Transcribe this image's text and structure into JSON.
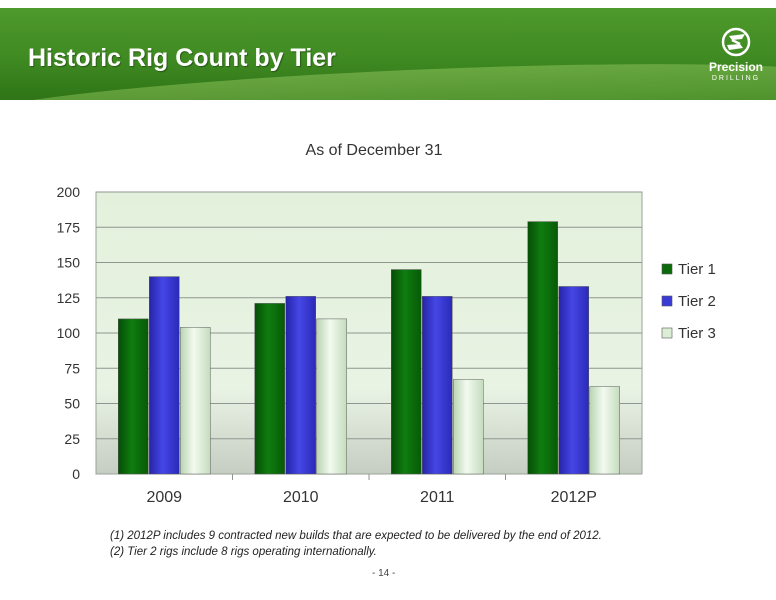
{
  "header": {
    "title": "Historic Rig Count by Tier",
    "logo_name": "Precision",
    "logo_sub": "DRILLING"
  },
  "chart_data": {
    "type": "bar",
    "title": "As of December 31",
    "categories": [
      "2009",
      "2010",
      "2011",
      "2012P"
    ],
    "series": [
      {
        "name": "Tier 1",
        "values": [
          110,
          121,
          145,
          179
        ],
        "color": "#0b6b0b"
      },
      {
        "name": "Tier 2",
        "values": [
          140,
          126,
          126,
          133
        ],
        "color": "#3a3ad6"
      },
      {
        "name": "Tier 3",
        "values": [
          104,
          110,
          67,
          62
        ],
        "color": "#dcefd6"
      }
    ],
    "y_ticks": [
      "0",
      "25",
      "50",
      "75",
      "100",
      "125",
      "150",
      "175",
      "200"
    ],
    "ylim": [
      0,
      200
    ],
    "grid": true,
    "legend": "right"
  },
  "footnotes": [
    "(1) 2012P includes 9 contracted new builds that are expected to be delivered by the end of 2012.",
    "(2) Tier 2 rigs include 8 rigs operating internationally."
  ],
  "page_number": "- 14 -"
}
